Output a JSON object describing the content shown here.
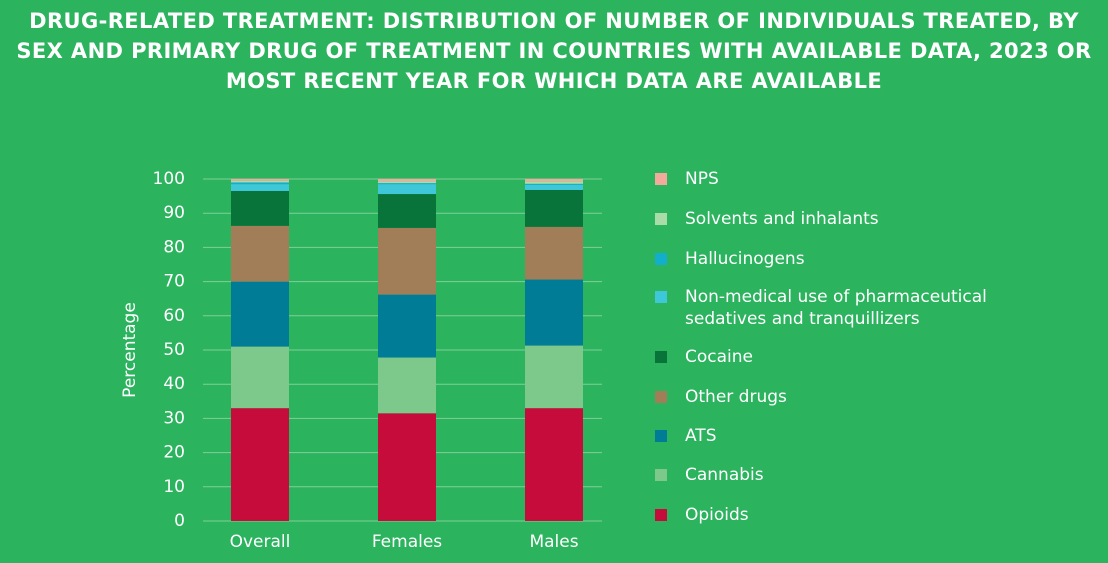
{
  "chart_data": {
    "type": "stacked-bar",
    "title": "DRUG-RELATED TREATMENT: DISTRIBUTION OF NUMBER OF INDIVIDUALS TREATED, BY SEX AND PRIMARY DRUG OF TREATMENT IN COUNTRIES WITH AVAILABLE DATA, 2023 OR MOST RECENT YEAR FOR WHICH DATA ARE AVAILABLE",
    "y_label": "Percentage",
    "categories": [
      "Overall",
      "Females",
      "Males"
    ],
    "ylim": [
      0,
      100
    ],
    "yticks": [
      0,
      10,
      20,
      30,
      40,
      50,
      60,
      70,
      80,
      90,
      100
    ],
    "grid": true,
    "series": [
      {
        "name": "Opioids",
        "color": "#c60c3a",
        "values": [
          33,
          31.5,
          33
        ]
      },
      {
        "name": "Cannabis",
        "color": "#7cc98b",
        "values": [
          18,
          16.3,
          18.3
        ]
      },
      {
        "name": "ATS",
        "color": "#007c96",
        "values": [
          19,
          18.4,
          19.3
        ]
      },
      {
        "name": "Other drugs",
        "color": "#a27e58",
        "values": [
          16.3,
          19.5,
          15.4
        ]
      },
      {
        "name": "Cocaine",
        "color": "#09743a",
        "values": [
          10.2,
          9.9,
          10.8
        ]
      },
      {
        "name": "Non-medical use of pharmaceutical sedatives and tranquillizers",
        "color": "#3ec7d8",
        "values": [
          2,
          2.9,
          1.5
        ]
      },
      {
        "name": "Hallucinogens",
        "color": "#14aecd",
        "values": [
          0.5,
          0.3,
          0.3
        ]
      },
      {
        "name": "Solvents and inhalants",
        "color": "#a9dca8",
        "values": [
          0.5,
          0.5,
          0.7
        ]
      },
      {
        "name": "NPS",
        "color": "#f3a99b",
        "values": [
          0.5,
          0.7,
          0.7
        ]
      }
    ]
  }
}
